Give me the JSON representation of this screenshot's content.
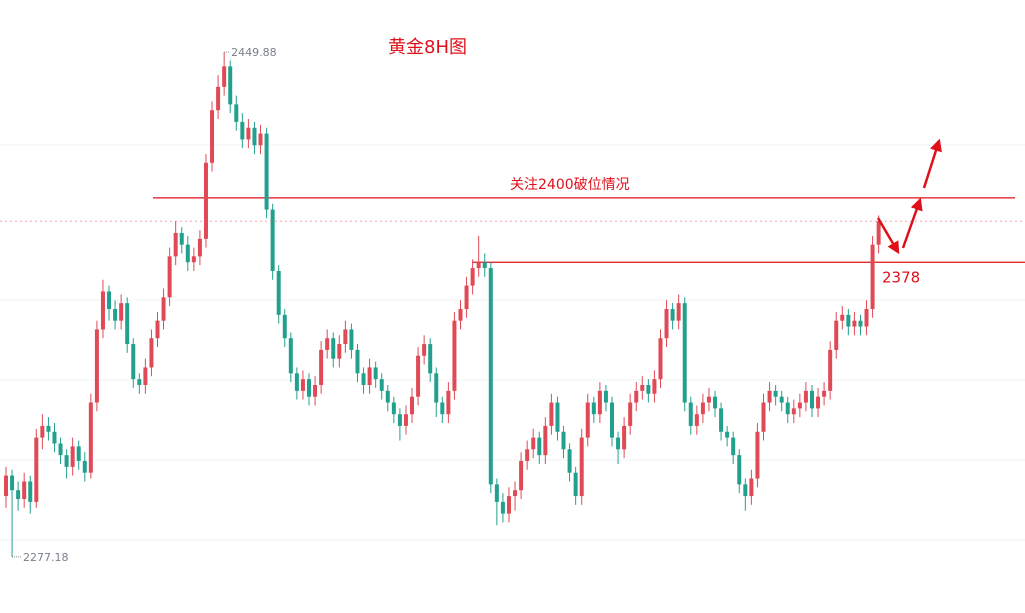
{
  "chart_data": {
    "type": "candlestick",
    "title": "黄金8H图",
    "up_color": "#e04a56",
    "down_color": "#22a08e",
    "ylim": [
      2258,
      2467.7
    ],
    "high_label": "2449.88",
    "low_label": "2277.18",
    "hlines": [
      {
        "value": 2400,
        "label": "关注2400破位情况",
        "color": "#e0101a"
      },
      {
        "value": 2378,
        "label": "2378",
        "color": "#e0101a"
      }
    ],
    "ohlc": [
      [
        2298,
        2308,
        2294,
        2305
      ],
      [
        2305,
        2307,
        2277.18,
        2300
      ],
      [
        2300,
        2303,
        2293,
        2297
      ],
      [
        2297,
        2306,
        2294,
        2303
      ],
      [
        2303,
        2305,
        2292,
        2296
      ],
      [
        2296,
        2321,
        2294,
        2318
      ],
      [
        2318,
        2326,
        2314,
        2322
      ],
      [
        2322,
        2325,
        2317,
        2320
      ],
      [
        2320,
        2323,
        2313,
        2316
      ],
      [
        2316,
        2318,
        2309,
        2312
      ],
      [
        2312,
        2314,
        2304,
        2308
      ],
      [
        2308,
        2318,
        2305,
        2315
      ],
      [
        2315,
        2317,
        2307,
        2310
      ],
      [
        2310,
        2313,
        2303,
        2306
      ],
      [
        2306,
        2333,
        2304,
        2330
      ],
      [
        2330,
        2358,
        2327,
        2355
      ],
      [
        2355,
        2372,
        2352,
        2368
      ],
      [
        2368,
        2370,
        2358,
        2362
      ],
      [
        2362,
        2365,
        2355,
        2358
      ],
      [
        2358,
        2367,
        2355,
        2364
      ],
      [
        2364,
        2366,
        2347,
        2350
      ],
      [
        2350,
        2352,
        2335,
        2338
      ],
      [
        2338,
        2340,
        2333,
        2336
      ],
      [
        2336,
        2345,
        2333,
        2342
      ],
      [
        2342,
        2355,
        2339,
        2352
      ],
      [
        2352,
        2361,
        2349,
        2358
      ],
      [
        2358,
        2369,
        2355,
        2366
      ],
      [
        2366,
        2383,
        2363,
        2380
      ],
      [
        2380,
        2392,
        2377,
        2388
      ],
      [
        2388,
        2390,
        2381,
        2384
      ],
      [
        2384,
        2387,
        2375,
        2378
      ],
      [
        2378,
        2383,
        2375,
        2380
      ],
      [
        2380,
        2389,
        2377,
        2386
      ],
      [
        2386,
        2415,
        2383,
        2412
      ],
      [
        2412,
        2433,
        2409,
        2430
      ],
      [
        2430,
        2442,
        2427,
        2438
      ],
      [
        2438,
        2449.88,
        2435,
        2445
      ],
      [
        2445,
        2447,
        2429,
        2432
      ],
      [
        2432,
        2435,
        2423,
        2426
      ],
      [
        2426,
        2429,
        2417,
        2420
      ],
      [
        2420,
        2427,
        2417,
        2424
      ],
      [
        2424,
        2426,
        2415,
        2418
      ],
      [
        2418,
        2425,
        2415,
        2422
      ],
      [
        2422,
        2424,
        2393,
        2396
      ],
      [
        2396,
        2398,
        2372,
        2375
      ],
      [
        2375,
        2377,
        2357,
        2360
      ],
      [
        2360,
        2362,
        2349,
        2352
      ],
      [
        2352,
        2354,
        2337,
        2340
      ],
      [
        2340,
        2342,
        2331,
        2334
      ],
      [
        2334,
        2341,
        2331,
        2338
      ],
      [
        2338,
        2340,
        2329,
        2332
      ],
      [
        2332,
        2339,
        2329,
        2336
      ],
      [
        2336,
        2351,
        2333,
        2348
      ],
      [
        2348,
        2355,
        2345,
        2352
      ],
      [
        2352,
        2354,
        2342,
        2345
      ],
      [
        2345,
        2353,
        2342,
        2350
      ],
      [
        2350,
        2358,
        2347,
        2355
      ],
      [
        2355,
        2357,
        2345,
        2348
      ],
      [
        2348,
        2350,
        2337,
        2340
      ],
      [
        2340,
        2342,
        2333,
        2336
      ],
      [
        2336,
        2345,
        2333,
        2342
      ],
      [
        2342,
        2344,
        2335,
        2338
      ],
      [
        2338,
        2340,
        2331,
        2334
      ],
      [
        2334,
        2336,
        2327,
        2330
      ],
      [
        2330,
        2332,
        2323,
        2326
      ],
      [
        2326,
        2328,
        2317,
        2322
      ],
      [
        2322,
        2329,
        2319,
        2326
      ],
      [
        2326,
        2335,
        2323,
        2332
      ],
      [
        2332,
        2349,
        2329,
        2346
      ],
      [
        2346,
        2353,
        2343,
        2350
      ],
      [
        2350,
        2352,
        2337,
        2340
      ],
      [
        2340,
        2342,
        2325,
        2330
      ],
      [
        2330,
        2332,
        2323,
        2326
      ],
      [
        2326,
        2337,
        2323,
        2334
      ],
      [
        2334,
        2361,
        2331,
        2358
      ],
      [
        2358,
        2365,
        2355,
        2362
      ],
      [
        2362,
        2373,
        2359,
        2370
      ],
      [
        2370,
        2379,
        2367,
        2376
      ],
      [
        2376,
        2387,
        2373,
        2378
      ],
      [
        2378,
        2381,
        2373,
        2376
      ],
      [
        2376,
        2378,
        2299,
        2302
      ],
      [
        2302,
        2304,
        2288,
        2296
      ],
      [
        2296,
        2299,
        2289,
        2292
      ],
      [
        2292,
        2301,
        2289,
        2298
      ],
      [
        2298,
        2303,
        2293,
        2300
      ],
      [
        2300,
        2313,
        2297,
        2310
      ],
      [
        2310,
        2317,
        2307,
        2314
      ],
      [
        2314,
        2321,
        2311,
        2318
      ],
      [
        2318,
        2320,
        2309,
        2312
      ],
      [
        2312,
        2325,
        2309,
        2322
      ],
      [
        2322,
        2333,
        2319,
        2330
      ],
      [
        2330,
        2332,
        2317,
        2320
      ],
      [
        2320,
        2322,
        2311,
        2314
      ],
      [
        2314,
        2316,
        2303,
        2306
      ],
      [
        2306,
        2308,
        2295,
        2298
      ],
      [
        2298,
        2321,
        2295,
        2318
      ],
      [
        2318,
        2333,
        2315,
        2330
      ],
      [
        2330,
        2332,
        2323,
        2326
      ],
      [
        2326,
        2337,
        2323,
        2334
      ],
      [
        2334,
        2336,
        2327,
        2330
      ],
      [
        2330,
        2332,
        2315,
        2318
      ],
      [
        2318,
        2320,
        2309,
        2314
      ],
      [
        2314,
        2325,
        2311,
        2322
      ],
      [
        2322,
        2333,
        2319,
        2330
      ],
      [
        2330,
        2337,
        2327,
        2334
      ],
      [
        2334,
        2339,
        2331,
        2336
      ],
      [
        2336,
        2338,
        2330,
        2333
      ],
      [
        2333,
        2341,
        2330,
        2338
      ],
      [
        2338,
        2355,
        2335,
        2352
      ],
      [
        2352,
        2365,
        2349,
        2362
      ],
      [
        2362,
        2364,
        2355,
        2358
      ],
      [
        2358,
        2367,
        2355,
        2364
      ],
      [
        2364,
        2366,
        2327,
        2330
      ],
      [
        2330,
        2332,
        2319,
        2322
      ],
      [
        2322,
        2329,
        2319,
        2326
      ],
      [
        2326,
        2333,
        2323,
        2330
      ],
      [
        2330,
        2335,
        2327,
        2332
      ],
      [
        2332,
        2334,
        2325,
        2328
      ],
      [
        2328,
        2330,
        2317,
        2320
      ],
      [
        2320,
        2322,
        2315,
        2318
      ],
      [
        2318,
        2320,
        2309,
        2312
      ],
      [
        2312,
        2314,
        2299,
        2302
      ],
      [
        2302,
        2304,
        2293,
        2298
      ],
      [
        2298,
        2307,
        2295,
        2304
      ],
      [
        2304,
        2323,
        2301,
        2320
      ],
      [
        2320,
        2333,
        2317,
        2330
      ],
      [
        2330,
        2337,
        2327,
        2334
      ],
      [
        2334,
        2336,
        2329,
        2332
      ],
      [
        2332,
        2334,
        2327,
        2330
      ],
      [
        2330,
        2332,
        2323,
        2326
      ],
      [
        2326,
        2331,
        2323,
        2328
      ],
      [
        2328,
        2333,
        2325,
        2330
      ],
      [
        2330,
        2337,
        2327,
        2334
      ],
      [
        2334,
        2336,
        2325,
        2328
      ],
      [
        2328,
        2335,
        2325,
        2332
      ],
      [
        2332,
        2337,
        2329,
        2334
      ],
      [
        2334,
        2351,
        2331,
        2348
      ],
      [
        2348,
        2361,
        2345,
        2358
      ],
      [
        2358,
        2363,
        2355,
        2360
      ],
      [
        2360,
        2362,
        2353,
        2356
      ],
      [
        2356,
        2361,
        2353,
        2358
      ],
      [
        2358,
        2360,
        2353,
        2356
      ],
      [
        2356,
        2365,
        2353,
        2362
      ],
      [
        2362,
        2387,
        2359,
        2384
      ],
      [
        2384,
        2394,
        2381,
        2392
      ]
    ]
  }
}
